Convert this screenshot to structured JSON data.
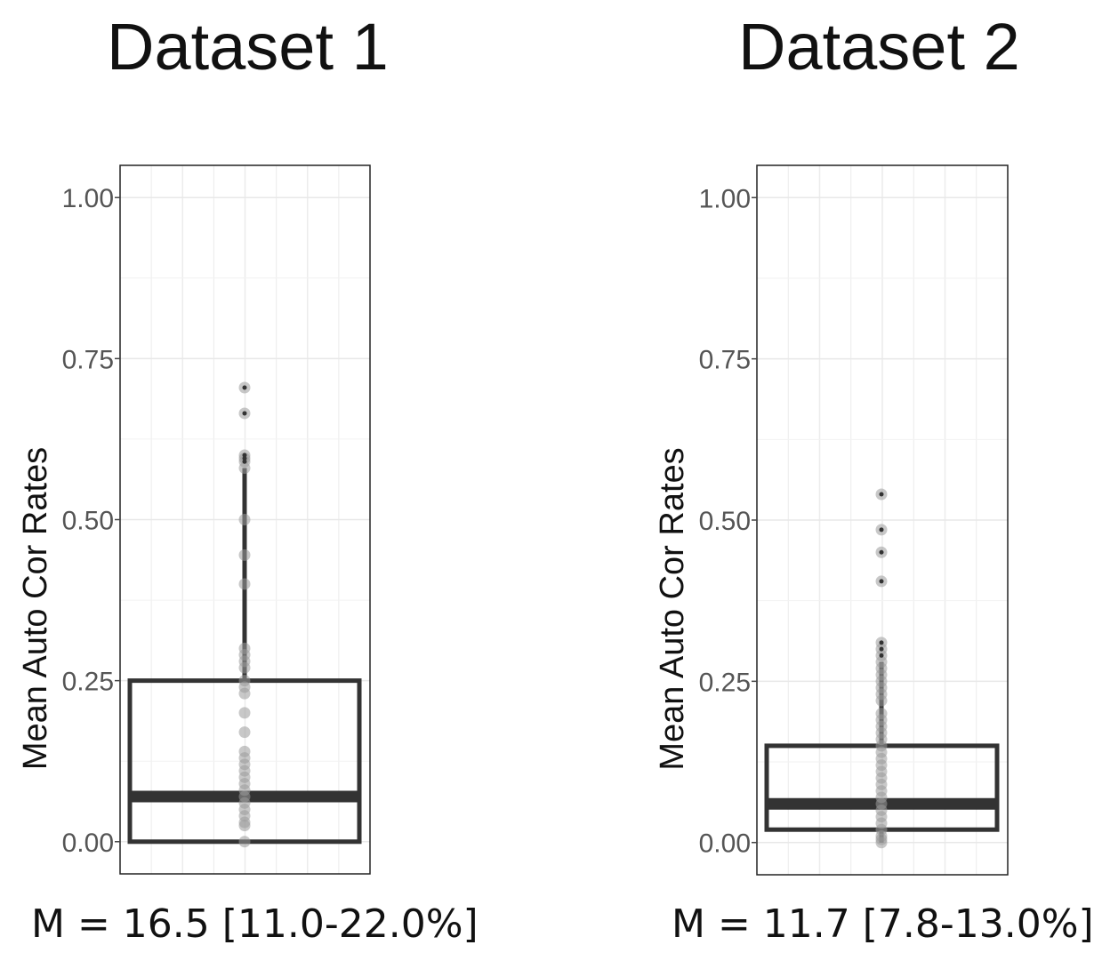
{
  "chart_data": [
    {
      "type": "box",
      "title": "Dataset 1",
      "ylabel": "Mean Auto Cor Rates",
      "ylim": [
        -0.05,
        1.05
      ],
      "yticks": [
        "0.00",
        "0.25",
        "0.50",
        "0.75",
        "1.00"
      ],
      "ytick_values": [
        0,
        0.25,
        0.5,
        0.75,
        1.0
      ],
      "box": {
        "q1": 0.0,
        "median": 0.07,
        "q3": 0.25,
        "whisker_low": 0.0,
        "whisker_high": 0.58
      },
      "points": [
        0.705,
        0.665,
        0.6,
        0.595,
        0.59,
        0.58,
        0.5,
        0.445,
        0.4,
        0.3,
        0.29,
        0.28,
        0.27,
        0.25,
        0.24,
        0.23,
        0.2,
        0.17,
        0.14,
        0.13,
        0.12,
        0.11,
        0.1,
        0.09,
        0.08,
        0.07,
        0.06,
        0.05,
        0.04,
        0.03,
        0.025,
        0.0
      ],
      "caption": "M = 16.5 [11.0-22.0%]"
    },
    {
      "type": "box",
      "title": "Dataset 2",
      "ylabel": "Mean Auto Cor Rates",
      "ylim": [
        -0.05,
        1.05
      ],
      "yticks": [
        "0.00",
        "0.25",
        "0.50",
        "0.75",
        "1.00"
      ],
      "ytick_values": [
        0,
        0.25,
        0.5,
        0.75,
        1.0
      ],
      "box": {
        "q1": 0.02,
        "median": 0.06,
        "q3": 0.15,
        "whisker_low": 0.0,
        "whisker_high": 0.28
      },
      "points": [
        0.54,
        0.485,
        0.45,
        0.405,
        0.31,
        0.3,
        0.29,
        0.28,
        0.27,
        0.26,
        0.25,
        0.24,
        0.23,
        0.22,
        0.2,
        0.19,
        0.18,
        0.17,
        0.16,
        0.15,
        0.14,
        0.13,
        0.12,
        0.11,
        0.1,
        0.09,
        0.08,
        0.07,
        0.06,
        0.05,
        0.04,
        0.03,
        0.02,
        0.01,
        0.005,
        0.0
      ],
      "caption": "M = 11.7 [7.8-13.0%]"
    }
  ]
}
